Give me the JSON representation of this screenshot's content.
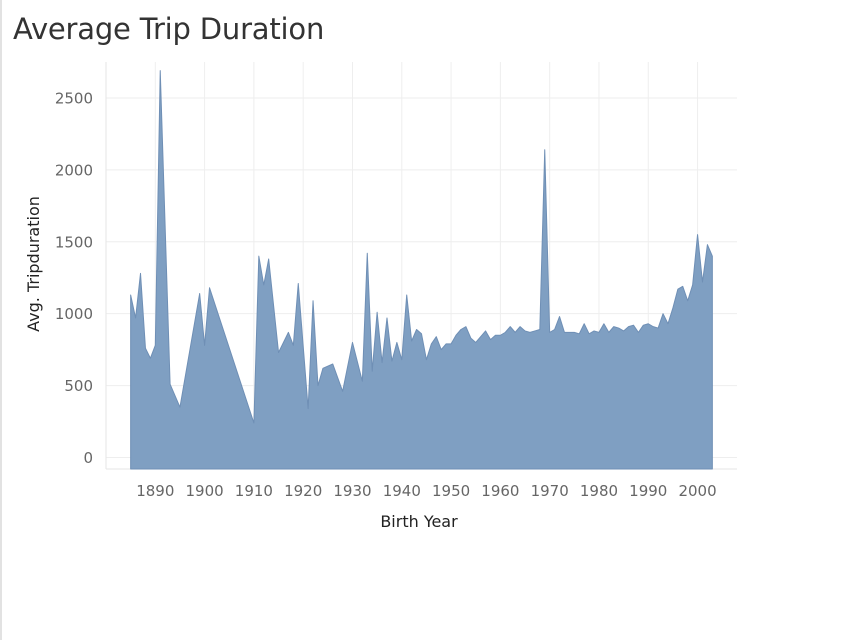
{
  "page": {
    "title": "Average Trip Duration"
  },
  "colors": {
    "area_fill": "#7f9fc2",
    "area_stroke": "#6f8fb5",
    "grid": "#eeeeee"
  },
  "chart_data": {
    "type": "area",
    "title": "Average Trip Duration",
    "xlabel": "Birth Year",
    "ylabel": "Avg. Tripduration",
    "xlim": [
      1880,
      2008
    ],
    "ylim": [
      -80,
      2750
    ],
    "x_ticks": [
      1890,
      1900,
      1910,
      1920,
      1930,
      1940,
      1950,
      1960,
      1970,
      1980,
      1990,
      2000
    ],
    "y_ticks": [
      0,
      500,
      1000,
      1500,
      2000,
      2500
    ],
    "grid": true,
    "series": [
      {
        "x": [
          1885,
          1886,
          1887,
          1888,
          1889,
          1890,
          1891,
          1893,
          1895,
          1899,
          1900,
          1901,
          1910,
          1911,
          1912,
          1913,
          1915,
          1917,
          1918,
          1919,
          1921,
          1922,
          1923,
          1924,
          1926,
          1928,
          1930,
          1932,
          1933,
          1934,
          1935,
          1936,
          1937,
          1938,
          1939,
          1940,
          1941,
          1942,
          1943,
          1944,
          1945,
          1946,
          1947,
          1948,
          1949,
          1950,
          1951,
          1952,
          1953,
          1954,
          1955,
          1956,
          1957,
          1958,
          1959,
          1960,
          1961,
          1962,
          1963,
          1964,
          1965,
          1966,
          1967,
          1968,
          1969,
          1970,
          1971,
          1972,
          1973,
          1974,
          1975,
          1976,
          1977,
          1978,
          1979,
          1980,
          1981,
          1982,
          1983,
          1984,
          1985,
          1986,
          1987,
          1988,
          1989,
          1990,
          1991,
          1992,
          1993,
          1994,
          1995,
          1996,
          1997,
          1998,
          1999,
          2000,
          2001,
          2002,
          2003
        ],
        "y": [
          1130,
          970,
          1280,
          760,
          690,
          780,
          2690,
          510,
          350,
          1140,
          780,
          1180,
          240,
          1400,
          1200,
          1380,
          730,
          870,
          780,
          1210,
          340,
          1090,
          500,
          620,
          650,
          460,
          800,
          530,
          1420,
          600,
          1010,
          660,
          970,
          670,
          800,
          680,
          1130,
          810,
          890,
          860,
          680,
          790,
          840,
          750,
          790,
          790,
          850,
          890,
          910,
          830,
          800,
          840,
          880,
          820,
          850,
          850,
          870,
          910,
          870,
          910,
          880,
          870,
          880,
          890,
          2140,
          870,
          890,
          980,
          870,
          870,
          870,
          860,
          930,
          860,
          880,
          870,
          930,
          870,
          910,
          900,
          880,
          910,
          920,
          870,
          920,
          930,
          910,
          900,
          1000,
          930,
          1040,
          1170,
          1190,
          1090,
          1200,
          1550,
          1220,
          1480,
          1400
        ]
      }
    ]
  }
}
